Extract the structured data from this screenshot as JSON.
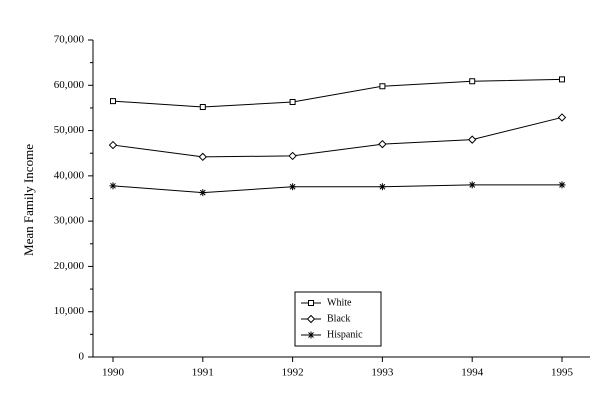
{
  "chart_data": {
    "type": "line",
    "y_label": "Mean Family Income",
    "categories": [
      "1990",
      "1991",
      "1992",
      "1993",
      "1994",
      "1995"
    ],
    "series": [
      {
        "name": "White",
        "color": "#000000",
        "marker": "square",
        "values": [
          56500,
          55200,
          56300,
          59800,
          60900,
          61300
        ]
      },
      {
        "name": "Black",
        "color": "#000000",
        "marker": "diamond",
        "values": [
          46800,
          44200,
          44400,
          47000,
          48000,
          52900
        ]
      },
      {
        "name": "Hispanic",
        "color": "#000000",
        "marker": "star",
        "values": [
          37800,
          36300,
          37600,
          37600,
          38000,
          38000
        ]
      }
    ],
    "ylim": [
      0,
      70000
    ],
    "yticks": [
      0,
      {
        "value": 10000,
        "label": "10,000"
      },
      {
        "value": 20000,
        "label": "20,000"
      },
      {
        "value": 30000,
        "label": "30,000"
      },
      {
        "value": 40000,
        "label": "40,000"
      },
      {
        "value": 50000,
        "label": "50,000"
      },
      {
        "value": 60000,
        "label": "60,000"
      },
      {
        "value": 70000,
        "label": "70,000"
      }
    ],
    "grid": false,
    "legend": "bottom-center"
  }
}
